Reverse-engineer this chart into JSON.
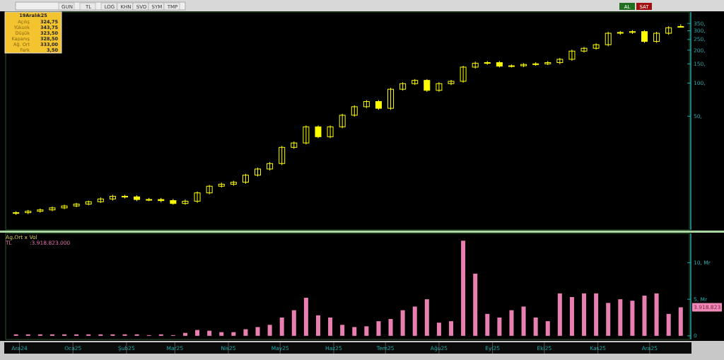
{
  "chart_data": [
    {
      "type": "candlestick",
      "color": "#ffff00",
      "log": true,
      "tick_labels": "y",
      "annotations": [
        "GUN",
        "TL",
        "LOG",
        "KHN",
        "SVD",
        "SYM",
        "TMP",
        "AL",
        "SAT",
        "19Aralık25",
        "Açılış",
        "324,75",
        "Yüksek",
        "343,75",
        "Düşük",
        "323,50",
        "Kapanış",
        "328,50",
        "Ağ. Ort",
        "333,00",
        "Fark",
        "3,50"
      ],
      "xlim": [
        "2024-11-23",
        "2025-12-24"
      ],
      "ylim": [
        4.6,
        445
      ],
      "yticks": [
        {
          "value": 50,
          "label": "50,"
        },
        {
          "value": 100,
          "label": "100,"
        },
        {
          "value": 150,
          "label": "150,"
        },
        {
          "value": 200,
          "label": "200,"
        },
        {
          "value": 250,
          "label": "250,"
        },
        {
          "value": 300,
          "label": "300,"
        },
        {
          "value": 350,
          "label": "350,"
        }
      ],
      "x": [
        "2024-11-29",
        "2024-12-06",
        "2024-12-13",
        "2024-12-20",
        "2024-12-27",
        "2025-01-03",
        "2025-01-10",
        "2025-01-17",
        "2025-01-24",
        "2025-01-31",
        "2025-02-07",
        "2025-02-14",
        "2025-02-21",
        "2025-02-28",
        "2025-03-07",
        "2025-03-14",
        "2025-03-21",
        "2025-03-28",
        "2025-04-04",
        "2025-04-11",
        "2025-04-18",
        "2025-04-25",
        "2025-05-02",
        "2025-05-09",
        "2025-05-16",
        "2025-05-23",
        "2025-05-30",
        "2025-06-06",
        "2025-06-13",
        "2025-06-20",
        "2025-06-27",
        "2025-07-04",
        "2025-07-11",
        "2025-07-18",
        "2025-07-25",
        "2025-08-01",
        "2025-08-08",
        "2025-08-15",
        "2025-08-22",
        "2025-08-29",
        "2025-09-05",
        "2025-09-12",
        "2025-09-19",
        "2025-09-26",
        "2025-10-03",
        "2025-10-10",
        "2025-10-17",
        "2025-10-24",
        "2025-10-31",
        "2025-11-07",
        "2025-11-14",
        "2025-11-21",
        "2025-11-28",
        "2025-12-05",
        "2025-12-12",
        "2025-12-19"
      ],
      "ohlc": [
        [
          6.5,
          6.8,
          6.3,
          6.6
        ],
        [
          6.6,
          7.0,
          6.4,
          6.8
        ],
        [
          6.8,
          7.2,
          6.6,
          7.0
        ],
        [
          7.0,
          7.5,
          6.8,
          7.3
        ],
        [
          7.3,
          7.8,
          7.1,
          7.6
        ],
        [
          7.6,
          8.1,
          7.4,
          7.9
        ],
        [
          7.9,
          8.5,
          7.7,
          8.3
        ],
        [
          8.3,
          9.1,
          8.1,
          8.8
        ],
        [
          8.8,
          9.6,
          8.5,
          9.3
        ],
        [
          9.3,
          9.6,
          8.9,
          9.2
        ],
        [
          9.2,
          9.5,
          8.4,
          8.7
        ],
        [
          8.7,
          9.0,
          8.4,
          8.7
        ],
        [
          8.7,
          9.0,
          8.2,
          8.5
        ],
        [
          8.5,
          8.8,
          7.8,
          8.0
        ],
        [
          8.0,
          8.7,
          7.8,
          8.4
        ],
        [
          8.4,
          10.3,
          8.1,
          10.0
        ],
        [
          10.0,
          11.8,
          9.7,
          11.5
        ],
        [
          11.5,
          12.4,
          11.2,
          12.0
        ],
        [
          12.0,
          12.9,
          11.6,
          12.5
        ],
        [
          12.5,
          14.9,
          12.1,
          14.5
        ],
        [
          14.5,
          17.0,
          14.1,
          16.5
        ],
        [
          16.5,
          19.1,
          16.0,
          18.5
        ],
        [
          18.5,
          26.8,
          17.9,
          26.0
        ],
        [
          26.0,
          29.4,
          25.2,
          28.5
        ],
        [
          28.5,
          41.2,
          27.6,
          40.0
        ],
        [
          40.0,
          41.2,
          31.5,
          32.5
        ],
        [
          32.5,
          41.2,
          31.5,
          40.0
        ],
        [
          40,
          52.5,
          38.8,
          51
        ],
        [
          51,
          62.8,
          49.5,
          61
        ],
        [
          61,
          70.0,
          59.2,
          68
        ],
        [
          68,
          70.0,
          57.2,
          59
        ],
        [
          59,
          90.6,
          57.2,
          88
        ],
        [
          88,
          102,
          85.4,
          99
        ],
        [
          99,
          109,
          96,
          106
        ],
        [
          106,
          109,
          83.4,
          86
        ],
        [
          86,
          102,
          83.4,
          99
        ],
        [
          99,
          107,
          96,
          104
        ],
        [
          104,
          144,
          101,
          140
        ],
        [
          140,
          157,
          136,
          152
        ],
        [
          152,
          159,
          147,
          154
        ],
        [
          154,
          159,
          139,
          143
        ],
        [
          143,
          148,
          139,
          144
        ],
        [
          144,
          152,
          140,
          148
        ],
        [
          148,
          155,
          144,
          150
        ],
        [
          150,
          159,
          146,
          154
        ],
        [
          154,
          170,
          149,
          165
        ],
        [
          165,
          202,
          160,
          196
        ],
        [
          196,
          214,
          190,
          208
        ],
        [
          208,
          231,
          202,
          224
        ],
        [
          224,
          294,
          217,
          285
        ],
        [
          285,
          299,
          276,
          290
        ],
        [
          290,
          304,
          281,
          295
        ],
        [
          295,
          304,
          233,
          240
        ],
        [
          240,
          294,
          233,
          285
        ],
        [
          285,
          330,
          276,
          320
        ],
        [
          324.75,
          343.75,
          323.5,
          328.5
        ]
      ]
    },
    {
      "type": "bar",
      "title": "Ag.Ort x Vol",
      "annotations": [
        "TL",
        ":3.918.823.000",
        "3.918.823"
      ],
      "xlim": [
        "2024-11-23",
        "2025-12-24"
      ],
      "xticks": [
        {
          "value": "2024-12-01",
          "label": "Ara24"
        },
        {
          "value": "2025-01-01",
          "label": "Oca25"
        },
        {
          "value": "2025-02-01",
          "label": "Şub25"
        },
        {
          "value": "2025-03-01",
          "label": "Mar25"
        },
        {
          "value": "2025-04-01",
          "label": "Nis25"
        },
        {
          "value": "2025-05-01",
          "label": "May25"
        },
        {
          "value": "2025-06-01",
          "label": "Haz25"
        },
        {
          "value": "2025-07-01",
          "label": "Tem25"
        },
        {
          "value": "2025-08-01",
          "label": "Ağu25"
        },
        {
          "value": "2025-09-01",
          "label": "Eyl25"
        },
        {
          "value": "2025-10-01",
          "label": "Eki25"
        },
        {
          "value": "2025-11-01",
          "label": "Kas25"
        },
        {
          "value": "2025-12-01",
          "label": "Ara25"
        }
      ],
      "ylim": [
        -0.5,
        14
      ],
      "yticks": [
        0,
        {
          "value": 5,
          "label": "5, Mr"
        },
        {
          "value": 10,
          "label": "10, Mr"
        }
      ],
      "x": [
        "2024-11-29",
        "2024-12-06",
        "2024-12-13",
        "2024-12-20",
        "2024-12-27",
        "2025-01-03",
        "2025-01-10",
        "2025-01-17",
        "2025-01-24",
        "2025-01-31",
        "2025-02-07",
        "2025-02-14",
        "2025-02-21",
        "2025-02-28",
        "2025-03-07",
        "2025-03-14",
        "2025-03-21",
        "2025-03-28",
        "2025-04-04",
        "2025-04-11",
        "2025-04-18",
        "2025-04-25",
        "2025-05-02",
        "2025-05-09",
        "2025-05-16",
        "2025-05-23",
        "2025-05-30",
        "2025-06-06",
        "2025-06-13",
        "2025-06-20",
        "2025-06-27",
        "2025-07-04",
        "2025-07-11",
        "2025-07-18",
        "2025-07-25",
        "2025-08-01",
        "2025-08-08",
        "2025-08-15",
        "2025-08-22",
        "2025-08-29",
        "2025-09-05",
        "2025-09-12",
        "2025-09-19",
        "2025-09-26",
        "2025-10-03",
        "2025-10-10",
        "2025-10-17",
        "2025-10-24",
        "2025-10-31",
        "2025-11-07",
        "2025-11-14",
        "2025-11-21",
        "2025-11-28",
        "2025-12-05",
        "2025-12-12",
        "2025-12-19"
      ],
      "series": [
        {
          "color": "#e87fb0",
          "values": [
            0.2,
            0.2,
            0.2,
            0.2,
            0.2,
            0.2,
            0.2,
            0.2,
            0.2,
            0.2,
            0.2,
            0.1,
            0.2,
            0.1,
            0.4,
            0.8,
            0.7,
            0.5,
            0.5,
            0.9,
            1.2,
            1.5,
            2.5,
            3.5,
            5.2,
            2.8,
            2.5,
            1.5,
            1.2,
            1.3,
            2.0,
            2.3,
            3.5,
            4.0,
            5.0,
            1.8,
            2.0,
            13.0,
            8.5,
            3.0,
            2.5,
            3.5,
            4.0,
            2.5,
            2.0,
            5.8,
            5.3,
            5.8,
            5.8,
            4.5,
            5.0,
            4.8,
            5.5,
            5.8,
            3.0,
            3.9
          ]
        }
      ]
    }
  ]
}
